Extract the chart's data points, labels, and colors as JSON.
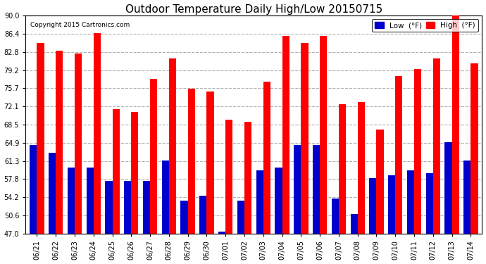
{
  "title": "Outdoor Temperature Daily High/Low 20150715",
  "copyright": "Copyright 2015 Cartronics.com",
  "legend_low": "Low  (°F)",
  "legend_high": "High  (°F)",
  "dates": [
    "06/21",
    "06/22",
    "06/23",
    "06/24",
    "06/25",
    "06/26",
    "06/27",
    "06/28",
    "06/29",
    "06/30",
    "07/01",
    "07/02",
    "07/03",
    "07/04",
    "07/05",
    "07/06",
    "07/07",
    "07/08",
    "07/09",
    "07/10",
    "07/11",
    "07/12",
    "07/13",
    "07/14"
  ],
  "highs": [
    84.5,
    83.0,
    82.5,
    86.5,
    71.5,
    71.0,
    77.5,
    81.5,
    75.5,
    75.0,
    69.5,
    69.0,
    77.0,
    86.0,
    84.5,
    86.0,
    72.5,
    73.0,
    67.5,
    78.0,
    79.5,
    81.5,
    90.5,
    80.5
  ],
  "lows": [
    64.5,
    63.0,
    60.0,
    60.0,
    57.5,
    57.5,
    57.5,
    61.5,
    53.5,
    54.5,
    47.5,
    53.5,
    59.5,
    60.0,
    64.5,
    64.5,
    54.0,
    51.0,
    58.0,
    58.5,
    59.5,
    59.0,
    65.0,
    61.5
  ],
  "ylim_min": 47.0,
  "ylim_max": 90.0,
  "yticks": [
    47.0,
    50.6,
    54.2,
    57.8,
    61.3,
    64.9,
    68.5,
    72.1,
    75.7,
    79.2,
    82.8,
    86.4,
    90.0
  ],
  "bar_width": 0.38,
  "high_color": "#ff0000",
  "low_color": "#0000cc",
  "bg_color": "#ffffff",
  "grid_color": "#b0b0b0",
  "title_fontsize": 11,
  "tick_fontsize": 7,
  "legend_fontsize": 7.5
}
